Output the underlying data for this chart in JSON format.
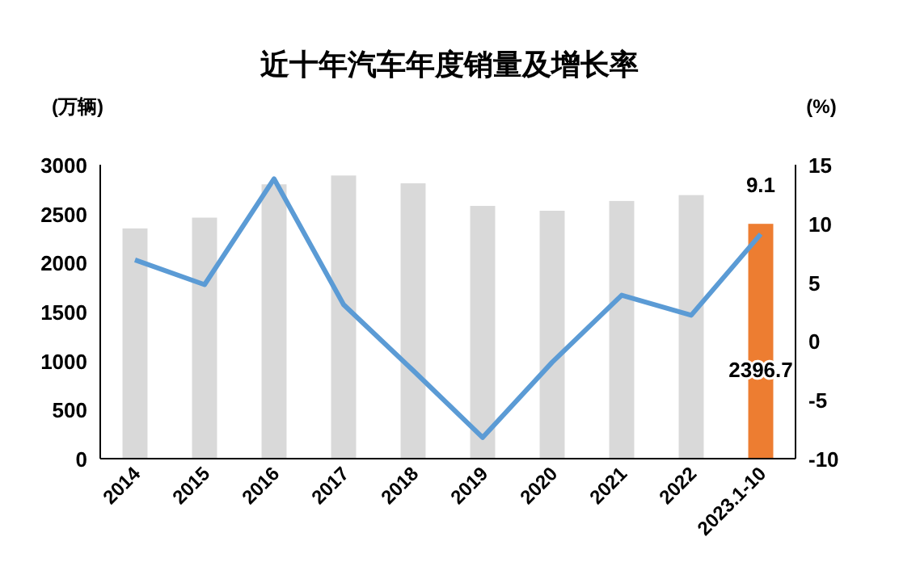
{
  "chart_data": {
    "type": "bar",
    "title": "近十年汽车年度销量及增长率",
    "ylabel": "(万辆)",
    "y2label": "(%)",
    "categories": [
      "2014",
      "2015",
      "2016",
      "2017",
      "2018",
      "2019",
      "2020",
      "2021",
      "2022",
      "2023.1-10"
    ],
    "series": [
      {
        "colors": [
          "#d9d9d9",
          "#d9d9d9",
          "#d9d9d9",
          "#d9d9d9",
          "#d9d9d9",
          "#d9d9d9",
          "#d9d9d9",
          "#d9d9d9",
          "#d9d9d9",
          "#ed7d31"
        ],
        "values": [
          2350,
          2460,
          2800,
          2890,
          2810,
          2580,
          2530,
          2630,
          2690,
          2396.7
        ],
        "value_labels": [
          null,
          null,
          null,
          null,
          null,
          null,
          null,
          null,
          null,
          "2396.7"
        ]
      },
      {
        "type": "line",
        "axis": "y2",
        "color": "#5b9bd5",
        "values": [
          6.9,
          4.8,
          13.8,
          3.1,
          -2.5,
          -8.2,
          -1.8,
          3.9,
          2.2,
          9.1
        ],
        "value_labels": [
          null,
          null,
          null,
          null,
          null,
          null,
          null,
          null,
          null,
          "9.1"
        ]
      }
    ],
    "ylim": [
      0,
      3000
    ],
    "yticks": [
      0,
      500,
      1000,
      1500,
      2000,
      2500,
      3000
    ],
    "y2lim": [
      -10,
      15
    ],
    "y2ticks": [
      -10,
      -5,
      0,
      5,
      10,
      15
    ],
    "grid": false,
    "marker": "none"
  }
}
